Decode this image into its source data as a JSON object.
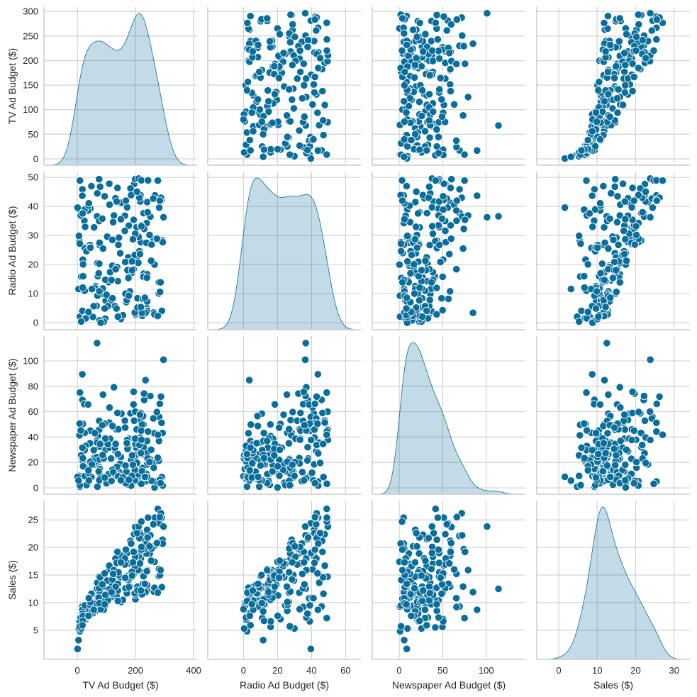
{
  "chart_data": {
    "type": "pairplot",
    "variables": [
      "TV Ad Budget ($)",
      "Radio Ad Budget ($)",
      "Newspaper Ad Budget ($)",
      "Sales ($)"
    ],
    "diagonal": "kde",
    "offdiagonal": "scatter",
    "grid": true,
    "colors": {
      "marker": "#0a6e9c",
      "kde_fill": "#0a6e9c",
      "grid": "#d3d3d3",
      "spine": "#cccccc"
    },
    "axes": [
      {
        "range": [
          -115,
          412
        ],
        "ticks": [
          0,
          200,
          400
        ],
        "tick_labels": [
          "0",
          "200",
          "400"
        ],
        "row_range": [
          -13,
          309
        ],
        "row_ticks": [
          0,
          50,
          100,
          150,
          200,
          250,
          300
        ],
        "row_tick_labels": [
          "0",
          "50",
          "100",
          "150",
          "200",
          "250",
          "300"
        ]
      },
      {
        "range": [
          -21,
          69
        ],
        "ticks": [
          0,
          20,
          40,
          60
        ],
        "tick_labels": [
          "0",
          "20",
          "40",
          "60"
        ],
        "row_range": [
          -2.4,
          52
        ],
        "row_ticks": [
          0,
          10,
          20,
          30,
          40,
          50
        ],
        "row_tick_labels": [
          "0",
          "10",
          "20",
          "30",
          "40",
          "50"
        ]
      },
      {
        "range": [
          -31,
          145
        ],
        "ticks": [
          0,
          50,
          100
        ],
        "tick_labels": [
          "0",
          "50",
          "100"
        ],
        "row_range": [
          -5,
          119.5
        ],
        "row_ticks": [
          0,
          20,
          40,
          60,
          80,
          100
        ],
        "row_tick_labels": [
          "0",
          "20",
          "40",
          "60",
          "80",
          "100"
        ]
      },
      {
        "range": [
          -5.7,
          34.1
        ],
        "ticks": [
          0,
          10,
          20,
          30
        ],
        "tick_labels": [
          "0",
          "10",
          "20",
          "30"
        ],
        "row_range": [
          -0.3,
          28.5
        ],
        "row_ticks": [
          5,
          10,
          15,
          20,
          25
        ],
        "row_tick_labels": [
          "5",
          "10",
          "15",
          "20",
          "25"
        ]
      }
    ],
    "data": {
      "tv": [
        230.1,
        44.5,
        17.2,
        151.5,
        180.8,
        8.7,
        57.5,
        120.2,
        8.6,
        199.8,
        66.1,
        214.7,
        23.8,
        97.5,
        204.1,
        195.4,
        67.8,
        281.4,
        69.2,
        147.3,
        218.4,
        237.4,
        13.2,
        228.3,
        62.3,
        262.9,
        142.9,
        240.1,
        248.8,
        70.6,
        292.9,
        112.9,
        97.2,
        265.6,
        95.7,
        290.7,
        266.9,
        74.7,
        43.1,
        228,
        202.5,
        177,
        293.6,
        206.9,
        25.1,
        175.1,
        89.7,
        239.9,
        227.2,
        66.9,
        199.8,
        100.4,
        216.4,
        182.6,
        262.7,
        198.9,
        7.3,
        136.2,
        210.8,
        210.7,
        53.5,
        261.3,
        239.3,
        102.7,
        131.1,
        69,
        31.5,
        139.3,
        237.4,
        216.8,
        199.1,
        109.8,
        26.8,
        129.4,
        213.4,
        16.9,
        27.5,
        120.5,
        5.4,
        116,
        76.4,
        239.8,
        75.3,
        68.4,
        213.5,
        193.2,
        76.3,
        110.7,
        88.3,
        109.8,
        134.3,
        28.6,
        217.7,
        250.9,
        107.4,
        163.3,
        197.6,
        184.9,
        289.7,
        135.2,
        222.4,
        296.4,
        280.2,
        187.9,
        238.2,
        137.9,
        25,
        90.4,
        13.1,
        255.4,
        225.8,
        241.7,
        175.7,
        209.6,
        78.2,
        75.1,
        139.2,
        76.4,
        125.7,
        19.4,
        141.3,
        18.8,
        224,
        123.1,
        229.5,
        87.2,
        7.8,
        80.2,
        220.3,
        59.6,
        0.7,
        265.2,
        8.4,
        219.8,
        36.9,
        48.3,
        25.6,
        273.7,
        43,
        184.9,
        73.4,
        193.7,
        220.5,
        104.6,
        96.2,
        140.3,
        240.1,
        243.2,
        38,
        44.7,
        280.7,
        121,
        197.6,
        171.3,
        187.8,
        4.1,
        93.9,
        149.8,
        11.7,
        131.7,
        172.5,
        85.7,
        188.4,
        163.5,
        117.2,
        234.5,
        17.9,
        206.8,
        215.4,
        284.3,
        50,
        164.5,
        19.6,
        168.4,
        222.4,
        276.9,
        248.4,
        170.2,
        276.7,
        165.6,
        156.6,
        218.5,
        56.2,
        287.6,
        253.8,
        205,
        139.5,
        191.1,
        286,
        18.7,
        39.5,
        75.5,
        17.2,
        166.8,
        149.7,
        38.2,
        94.2,
        177,
        283.6,
        232.1
      ],
      "radio": [
        37.8,
        39.3,
        45.9,
        41.3,
        10.8,
        48.9,
        32.8,
        19.6,
        2.1,
        2.6,
        5.8,
        24,
        35.1,
        7.6,
        32.9,
        47.7,
        36.6,
        39.6,
        20.5,
        23.9,
        27.7,
        5.1,
        15.9,
        16.9,
        12.6,
        3.5,
        29.3,
        16.7,
        27.1,
        16,
        28.3,
        17.4,
        1.5,
        20,
        1.4,
        4.1,
        43.8,
        49.4,
        26.7,
        37.7,
        22.3,
        33.4,
        27.7,
        8.4,
        25.7,
        22.5,
        9.9,
        41.5,
        15.8,
        11.7,
        3.1,
        9.6,
        41.7,
        46.2,
        28.8,
        49.4,
        28.1,
        19.2,
        49.6,
        29.5,
        2,
        42.7,
        15.5,
        29.6,
        42.8,
        9.3,
        24.6,
        14.5,
        27.5,
        43.9,
        30.6,
        14.3,
        33,
        5.7,
        24.6,
        43.7,
        1.6,
        28.5,
        29.9,
        7.7,
        26.7,
        4.1,
        20.3,
        44.5,
        43,
        18.4,
        27.5,
        40.6,
        25.5,
        47.8,
        4.9,
        1.5,
        33.5,
        36.5,
        14,
        31.6,
        3.5,
        21,
        42.3,
        41.7,
        4.3,
        36.3,
        10.1,
        17.2,
        34.3,
        46.4,
        11,
        0.3,
        0.4,
        26.9,
        8.2,
        38,
        15.4,
        20.6,
        46.8,
        35,
        14.3,
        0.8,
        36.9,
        16,
        26.8,
        21.7,
        2.4,
        34.6,
        32.3,
        11.8,
        38.9,
        0,
        49,
        12,
        39.6,
        2.9,
        27.2,
        33.5,
        38.6,
        47,
        39,
        28.9,
        25.9,
        43.9,
        17,
        35.4,
        33.2,
        5.7,
        14.8,
        1.9,
        7.3,
        49,
        40.3,
        25.8,
        13.9,
        8.4,
        23.3,
        39.7,
        21.1,
        11.6,
        43.5,
        1.3,
        36.9,
        18.4,
        18.1,
        35.8,
        18.1,
        36.8,
        14.7,
        3.4,
        37.6,
        5.2,
        23.6,
        10.6,
        11.6,
        20.9,
        20.1,
        7.1,
        3.4,
        48.9,
        30.2,
        7.8,
        2.3,
        10,
        2.6,
        5.4,
        5.7,
        43,
        21.3,
        45.1,
        2.1,
        28.7,
        13.9,
        12.1,
        41.1,
        10.8,
        4.1,
        42,
        35.6,
        3.7,
        4.9,
        9.3,
        42,
        8.6
      ],
      "newspaper": [
        69.2,
        45.1,
        69.3,
        58.5,
        58.4,
        75,
        23.5,
        11.6,
        1,
        21.2,
        24.2,
        4,
        65.9,
        7.2,
        46,
        52.9,
        114,
        55.8,
        18.3,
        19.1,
        53.4,
        23.5,
        49.6,
        26.2,
        18.3,
        19.5,
        12.6,
        22.9,
        22.9,
        40.8,
        43.2,
        38.6,
        30,
        0.3,
        7.4,
        8.5,
        5,
        45.7,
        35.1,
        32,
        31.6,
        38.7,
        1.8,
        26.4,
        43.3,
        31.5,
        35.7,
        18.5,
        49.9,
        36.8,
        34.6,
        3.6,
        39.6,
        58.7,
        15.9,
        60,
        41.4,
        16.6,
        37.7,
        9.3,
        21.4,
        54.7,
        27.3,
        8.4,
        28.9,
        0.9,
        2.2,
        10.2,
        11,
        27.2,
        38.7,
        31.7,
        19.3,
        31.3,
        13.1,
        89.4,
        20.7,
        14.2,
        9.4,
        23.1,
        22.3,
        36.9,
        32.5,
        35.6,
        33.8,
        65.7,
        16,
        63.2,
        73.4,
        51.4,
        9.3,
        33,
        59,
        72.3,
        10.9,
        52.9,
        5.9,
        22,
        51.2,
        45.9,
        49.8,
        100.9,
        21.4,
        17.9,
        5.3,
        59,
        29.7,
        23.2,
        25.6,
        5.5,
        56.5,
        23.2,
        2.4,
        10.7,
        34.5,
        52.7,
        25.6,
        14.8,
        79.2,
        22.3,
        46.2,
        50.4,
        15.6,
        12.4,
        74.2,
        25.9,
        50.6,
        9.2,
        3.2,
        43.1,
        8.7,
        43,
        2.1,
        45.1,
        65.6,
        8.5,
        9.3,
        59.7,
        20.5,
        1.7,
        12.9,
        75.6,
        37.9,
        34.4,
        38.9,
        9,
        8.7,
        44.3,
        11.9,
        20.6,
        37,
        48.7,
        14.2,
        37.7,
        9.5,
        5.7,
        50.5,
        24.3,
        45.2,
        34.6,
        30.7,
        49.3,
        25.6,
        7.4,
        5.4,
        84.8,
        21.6,
        19.4,
        57.6,
        6.4,
        18.4,
        47.4,
        17,
        12.8,
        13.1,
        41.8,
        20.3,
        35.2,
        23.7,
        17.6,
        8.3,
        27.4,
        29.7,
        71.8,
        30,
        19.6,
        26.6,
        18.2,
        3.7,
        23.4,
        5.8,
        6,
        31.6,
        3.6,
        6,
        13.8,
        8.1,
        6.4,
        66.2,
        8.7
      ],
      "sales": [
        22.1,
        10.4,
        9.3,
        18.5,
        12.9,
        7.2,
        11.8,
        13.2,
        4.8,
        10.6,
        8.6,
        17.4,
        9.2,
        9.7,
        19,
        22.4,
        12.5,
        24.4,
        11.3,
        14.6,
        18,
        12.5,
        5.6,
        15.5,
        9.7,
        12,
        15,
        15.9,
        18.9,
        10.5,
        21.4,
        11.9,
        9.6,
        17.4,
        9.5,
        12.8,
        25.4,
        14.7,
        10.1,
        21.5,
        16.6,
        17.1,
        20.7,
        12.9,
        8.5,
        14.9,
        10.6,
        23.2,
        14.8,
        9.7,
        11.4,
        10.7,
        22.6,
        21.2,
        20.2,
        23.7,
        5.5,
        13.2,
        23.8,
        18.4,
        8.1,
        24.2,
        15.7,
        14,
        18,
        9.3,
        9.5,
        13.4,
        18.9,
        22.3,
        18.3,
        12.4,
        8.8,
        11,
        17,
        8.7,
        6.9,
        14.2,
        5.3,
        11,
        11.8,
        12.3,
        11.3,
        13.6,
        21.7,
        15.2,
        12,
        16,
        12.9,
        16.7,
        11.2,
        7.3,
        19.4,
        22.2,
        11.5,
        16.9,
        11.7,
        15.5,
        25.4,
        17.2,
        11.7,
        23.8,
        14.8,
        14.7,
        20.7,
        19.2,
        7.2,
        8.7,
        5.3,
        19.8,
        13.4,
        21.8,
        14.1,
        15.9,
        14.6,
        12.6,
        12.2,
        9.4,
        15.9,
        6.6,
        15.5,
        7,
        11.6,
        15.2,
        19.7,
        10.6,
        6.6,
        8.8,
        24.7,
        9.7,
        1.6,
        12.7,
        5.7,
        19.6,
        10.8,
        11.6,
        9.5,
        20.8,
        9.6,
        20.7,
        10.9,
        19.2,
        20.1,
        10.4,
        11.4,
        10.3,
        13.2,
        25.4,
        10.9,
        10.1,
        16.1,
        11.6,
        16.6,
        19,
        15.6,
        3.2,
        15.3,
        10.1,
        7.3,
        12.9,
        14.4,
        13.3,
        14.9,
        18,
        11.9,
        11.9,
        8,
        12.2,
        17.1,
        15,
        8.4,
        14.5,
        7.6,
        11.7,
        11.5,
        27,
        20.2,
        11.7,
        11.8,
        12.6,
        10.5,
        12.2,
        8.7,
        26.2,
        17.6,
        22.6,
        10.3,
        17.3,
        15.9,
        6.7,
        10.8,
        9.9,
        5.9,
        19.6,
        17.3,
        7.6,
        9.7,
        12.8,
        25.5,
        13.4
      ]
    }
  }
}
